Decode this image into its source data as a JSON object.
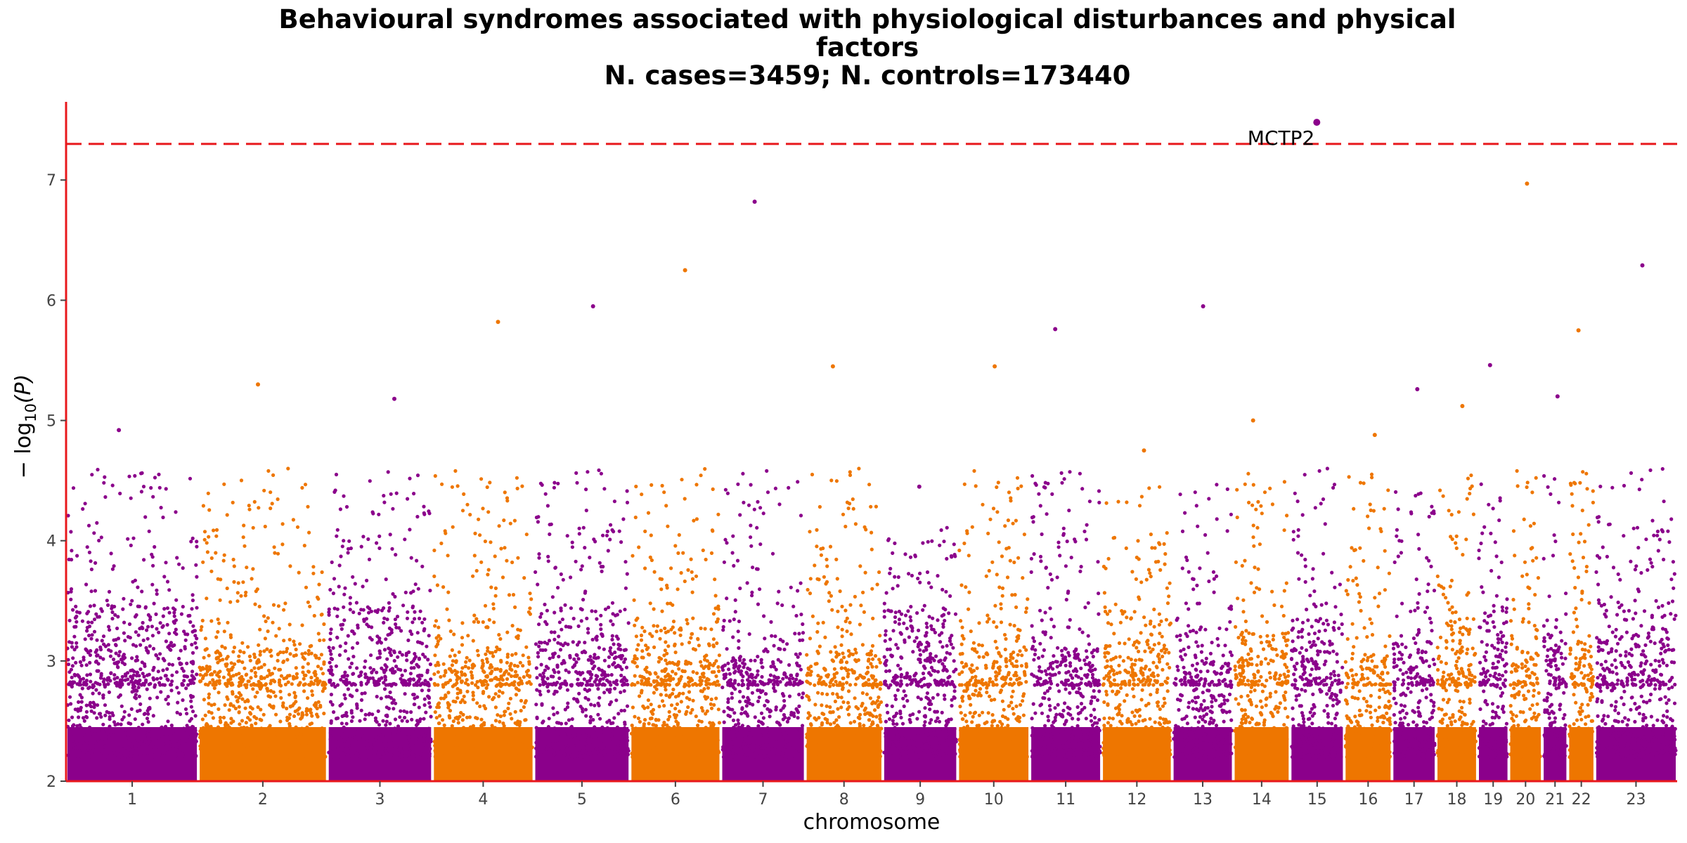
{
  "chart_data": {
    "type": "scatter",
    "title_lines": [
      "Behavioural syndromes associated with physiological disturbances and physical",
      "factors",
      "N. cases=3459; N. controls=173440"
    ],
    "xlabel": "chromosome",
    "ylabel_main": "− log",
    "ylabel_sub": "10",
    "ylabel_var": "(P)",
    "ylim": [
      2,
      7.65
    ],
    "yticks": [
      2,
      3,
      4,
      5,
      6,
      7
    ],
    "threshold": 7.3,
    "grid": false,
    "colors": {
      "odd": "#8b008b",
      "even": "#ee7600",
      "threshold": "#e8181c",
      "axis": "#e8181c"
    },
    "chromosomes": [
      {
        "label": "1",
        "len": 249,
        "max": 4.92
      },
      {
        "label": "2",
        "len": 243,
        "max": 5.3
      },
      {
        "label": "3",
        "len": 198,
        "max": 5.18
      },
      {
        "label": "4",
        "len": 191,
        "max": 5.82
      },
      {
        "label": "5",
        "len": 181,
        "max": 5.95
      },
      {
        "label": "6",
        "len": 171,
        "max": 6.25
      },
      {
        "label": "7",
        "len": 159,
        "max": 6.82
      },
      {
        "label": "8",
        "len": 146,
        "max": 5.45
      },
      {
        "label": "9",
        "len": 141,
        "max": 4.45
      },
      {
        "label": "10",
        "len": 136,
        "max": 5.45
      },
      {
        "label": "11",
        "len": 135,
        "max": 5.76
      },
      {
        "label": "12",
        "len": 133,
        "max": 4.75
      },
      {
        "label": "13",
        "len": 115,
        "max": 5.95
      },
      {
        "label": "14",
        "len": 107,
        "max": 5.0
      },
      {
        "label": "15",
        "len": 102,
        "max": 7.48
      },
      {
        "label": "16",
        "len": 90,
        "max": 4.88
      },
      {
        "label": "17",
        "len": 83,
        "max": 5.26
      },
      {
        "label": "18",
        "len": 78,
        "max": 5.12
      },
      {
        "label": "19",
        "len": 59,
        "max": 5.46
      },
      {
        "label": "20",
        "len": 63,
        "max": 6.97
      },
      {
        "label": "21",
        "len": 48,
        "max": 5.2
      },
      {
        "label": "22",
        "len": 51,
        "max": 5.75
      },
      {
        "label": "23",
        "len": 155,
        "max": 6.29
      }
    ],
    "annotations": [
      {
        "text": "MCTP2",
        "chromosome": "15",
        "y": 7.48
      }
    ]
  }
}
